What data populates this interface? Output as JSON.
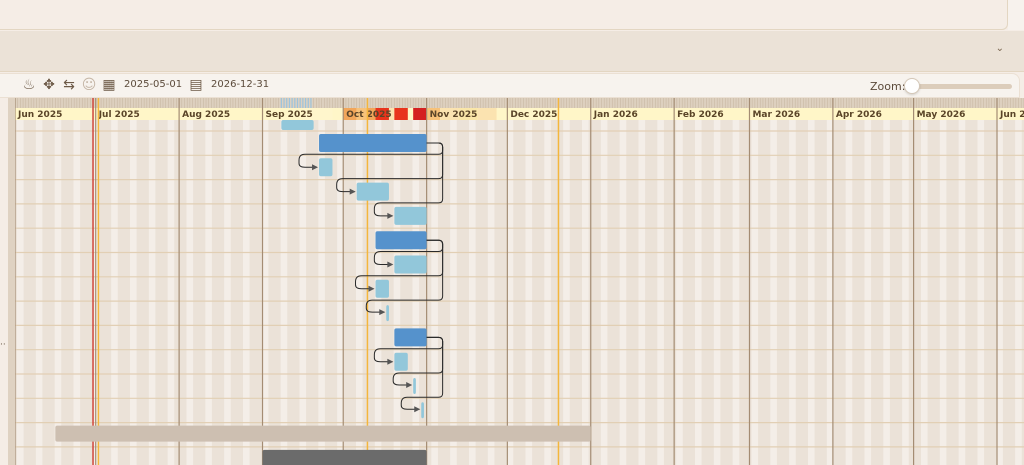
{
  "toolbar": {
    "icons": [
      "flame-icon",
      "move-icon",
      "swap-icon",
      "user-icon",
      "calendar-icon",
      "calendar-end-icon"
    ],
    "start_date": "2025-05-01",
    "end_date": "2026-12-31",
    "zoom_label": "Zoom:",
    "zoom_level": 0
  },
  "collapse_icon": "chevron-down-icon",
  "timeline": {
    "months": [
      {
        "label": "Jun 2025",
        "date": "2025-06-01"
      },
      {
        "label": "Jul 2025",
        "date": "2025-07-01"
      },
      {
        "label": "Aug 2025",
        "date": "2025-08-01"
      },
      {
        "label": "Sep 2025",
        "date": "2025-09-01"
      },
      {
        "label": "Oct 2025",
        "date": "2025-10-01"
      },
      {
        "label": "Nov 2025",
        "date": "2025-11-01"
      },
      {
        "label": "Dec 2025",
        "date": "2025-12-01"
      },
      {
        "label": "Jan 2026",
        "date": "2026-01-01"
      },
      {
        "label": "Feb 2026",
        "date": "2026-02-01"
      },
      {
        "label": "Mar 2026",
        "date": "2026-03-01"
      },
      {
        "label": "Apr 2026",
        "date": "2026-04-01"
      },
      {
        "label": "May 2026",
        "date": "2026-05-01"
      },
      {
        "label": "Jun 2026",
        "date": "2026-06-01"
      }
    ],
    "markers": [
      {
        "date": "2025-06-30",
        "color": "#d0453a"
      },
      {
        "date": "2025-07-02",
        "color": "#f4b63c"
      },
      {
        "date": "2025-10-10",
        "color": "#f4b63c"
      },
      {
        "date": "2025-12-20",
        "color": "#f4b63c"
      }
    ],
    "heat": [
      {
        "start": "2025-10-01",
        "end": "2025-10-06",
        "color": "#f2a65a"
      },
      {
        "start": "2025-10-06",
        "end": "2025-10-10",
        "color": "#f7c27a"
      },
      {
        "start": "2025-10-10",
        "end": "2025-10-13",
        "color": "#f2a65a"
      },
      {
        "start": "2025-10-13",
        "end": "2025-10-18",
        "color": "#e8341c"
      },
      {
        "start": "2025-10-18",
        "end": "2025-10-20",
        "color": "#fbe3b0"
      },
      {
        "start": "2025-10-20",
        "end": "2025-10-25",
        "color": "#e8341c"
      },
      {
        "start": "2025-10-27",
        "end": "2025-11-01",
        "color": "#d42020"
      },
      {
        "start": "2025-11-01",
        "end": "2025-11-06",
        "color": "#f7c27a"
      },
      {
        "start": "2025-11-06",
        "end": "2025-11-13",
        "color": "#fbe3b0"
      },
      {
        "start": "2025-11-13",
        "end": "2025-11-20",
        "color": "#fae6a8"
      },
      {
        "start": "2025-11-20",
        "end": "2025-11-27",
        "color": "#fbe3b0"
      },
      {
        "start": "2025-09-16",
        "end": "2025-09-27",
        "color": "#fff6cc"
      }
    ],
    "top_ticks": {
      "start": "2025-09-08",
      "end": "2025-09-20",
      "color": "#9cc3dc"
    }
  },
  "colors": {
    "summary": "#5592cc",
    "task": "#92c7da",
    "group": "#cdbfb1",
    "dark": "#6b6b6b",
    "link": "#2a2a2a"
  },
  "tasks": [
    {
      "row": 0,
      "start": "2025-09-08",
      "end": "2025-09-20",
      "kind": "task"
    },
    {
      "row": 1,
      "start": "2025-09-22",
      "end": "2025-11-01",
      "kind": "summary"
    },
    {
      "row": 2,
      "start": "2025-09-22",
      "end": "2025-09-27",
      "kind": "task",
      "parent": 1
    },
    {
      "row": 3,
      "start": "2025-10-06",
      "end": "2025-10-18",
      "kind": "task",
      "parent": 1
    },
    {
      "row": 4,
      "start": "2025-10-20",
      "end": "2025-11-01",
      "kind": "task",
      "parent": 1
    },
    {
      "row": 5,
      "start": "2025-10-13",
      "end": "2025-11-01",
      "kind": "summary"
    },
    {
      "row": 6,
      "start": "2025-10-20",
      "end": "2025-11-01",
      "kind": "task",
      "parent": 5
    },
    {
      "row": 7,
      "start": "2025-10-13",
      "end": "2025-10-18",
      "kind": "task",
      "parent": 5
    },
    {
      "row": 8,
      "start": "2025-10-17",
      "end": "2025-10-18",
      "kind": "task",
      "parent": 5
    },
    {
      "row": 9,
      "start": "2025-10-20",
      "end": "2025-11-01",
      "kind": "summary"
    },
    {
      "row": 10,
      "start": "2025-10-20",
      "end": "2025-10-25",
      "kind": "task",
      "parent": 9
    },
    {
      "row": 11,
      "start": "2025-10-27",
      "end": "2025-10-28",
      "kind": "task",
      "parent": 9
    },
    {
      "row": 12,
      "start": "2025-10-30",
      "end": "2025-10-31",
      "kind": "task",
      "parent": 9
    },
    {
      "row": 13,
      "start": "2025-06-16",
      "end": "2026-01-01",
      "kind": "group"
    },
    {
      "row": 14,
      "start": "2025-09-01",
      "end": "2025-11-01",
      "kind": "dark"
    }
  ],
  "row_menu": "··"
}
